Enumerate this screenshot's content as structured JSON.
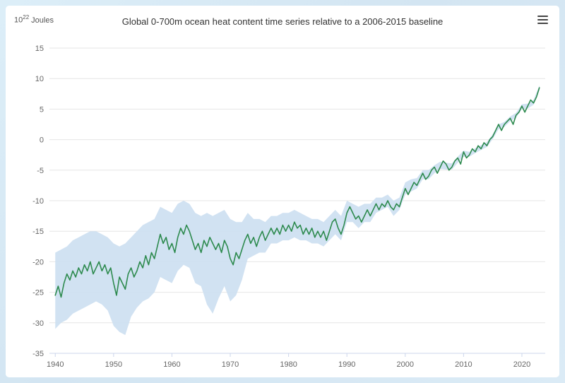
{
  "page": {
    "background_color": "#d7e7f3",
    "card_color": "#ffffff"
  },
  "header": {
    "menu_icon": "hamburger-icon"
  },
  "chart_data": {
    "type": "line",
    "title": "Global 0-700m ocean heat content time series relative to a 2006-2015 baseline",
    "unit_label": {
      "base": "10",
      "exponent": "22",
      "suffix": "Joules"
    },
    "xlabel": "",
    "ylabel": "10^22 Joules",
    "xlim": [
      1939,
      2024
    ],
    "ylim": [
      -35,
      15
    ],
    "xticks": [
      1940,
      1950,
      1960,
      1970,
      1980,
      1990,
      2000,
      2010,
      2020
    ],
    "yticks": [
      15,
      10,
      5,
      0,
      -5,
      -10,
      -15,
      -20,
      -25,
      -30,
      -35
    ],
    "grid": "horizontal",
    "legend": "none",
    "colors": {
      "line": "#2d8a4e",
      "band": "#ccdff1",
      "grid": "#e6e6e6",
      "axis": "#ccd6eb",
      "tick_label": "#666666",
      "title": "#333333"
    },
    "series": [
      {
        "name": "Ocean heat content 0-700m",
        "type": "line",
        "x_start": 1940,
        "x_step": 0.5,
        "y": [
          -25.5,
          -24.0,
          -25.8,
          -23.5,
          -22.0,
          -23.0,
          -21.5,
          -22.5,
          -21.0,
          -22.0,
          -20.5,
          -21.5,
          -20.0,
          -22.0,
          -21.0,
          -20.0,
          -21.5,
          -20.5,
          -22.0,
          -21.0,
          -23.5,
          -25.5,
          -22.5,
          -23.5,
          -24.5,
          -22.0,
          -21.0,
          -22.5,
          -21.5,
          -20.0,
          -21.0,
          -19.0,
          -20.5,
          -18.5,
          -19.5,
          -17.5,
          -15.5,
          -17.0,
          -16.0,
          -18.0,
          -17.0,
          -18.5,
          -16.0,
          -14.5,
          -15.5,
          -14.0,
          -15.0,
          -16.5,
          -18.0,
          -17.0,
          -18.5,
          -16.5,
          -17.5,
          -16.0,
          -17.0,
          -18.0,
          -17.0,
          -18.5,
          -16.5,
          -17.5,
          -19.5,
          -20.5,
          -18.5,
          -19.5,
          -18.0,
          -16.5,
          -15.5,
          -17.0,
          -16.0,
          -17.5,
          -16.0,
          -15.0,
          -16.5,
          -15.5,
          -14.5,
          -15.5,
          -14.5,
          -15.5,
          -14.0,
          -15.0,
          -14.0,
          -15.0,
          -13.5,
          -14.5,
          -14.0,
          -15.5,
          -14.5,
          -15.5,
          -14.5,
          -16.0,
          -15.0,
          -16.0,
          -15.0,
          -16.5,
          -15.0,
          -13.5,
          -13.0,
          -14.5,
          -15.5,
          -14.0,
          -12.0,
          -11.0,
          -12.0,
          -13.0,
          -12.5,
          -13.5,
          -12.5,
          -11.5,
          -12.5,
          -11.5,
          -10.5,
          -11.5,
          -10.5,
          -11.0,
          -10.0,
          -11.0,
          -11.5,
          -10.5,
          -11.0,
          -9.5,
          -8.0,
          -9.0,
          -8.0,
          -7.0,
          -7.5,
          -6.5,
          -5.5,
          -6.5,
          -6.0,
          -5.0,
          -4.5,
          -5.5,
          -4.5,
          -3.5,
          -4.0,
          -5.0,
          -4.5,
          -3.5,
          -3.0,
          -4.0,
          -2.0,
          -3.0,
          -2.5,
          -1.5,
          -2.0,
          -1.0,
          -1.5,
          -0.5,
          -1.0,
          0.0,
          0.5,
          1.5,
          2.5,
          1.5,
          2.5,
          3.0,
          3.5,
          2.5,
          4.0,
          4.5,
          5.5,
          4.5,
          5.5,
          6.5,
          6.0,
          7.0,
          8.5
        ]
      },
      {
        "name": "Uncertainty range",
        "type": "arearange",
        "x_start": 1940,
        "x_step": 1,
        "low": [
          -31,
          -30,
          -29.5,
          -28.5,
          -28,
          -27.5,
          -27,
          -26.5,
          -27,
          -28,
          -30.5,
          -31.5,
          -32,
          -29,
          -27.5,
          -26.5,
          -26,
          -25,
          -22.5,
          -23,
          -23.5,
          -21.5,
          -20.5,
          -21,
          -23.5,
          -24,
          -27,
          -28.5,
          -26,
          -24,
          -26.5,
          -25.5,
          -23,
          -19.5,
          -19,
          -18.5,
          -18.5,
          -17,
          -17,
          -16.5,
          -16.5,
          -16,
          -16.5,
          -16.5,
          -17,
          -17,
          -17.5,
          -16.5,
          -15.5,
          -16.5,
          -13.5,
          -13.5,
          -14.5,
          -13.5,
          -13.5,
          -12,
          -11.5,
          -11,
          -12.5,
          -11.5,
          -9,
          -8.5,
          -8,
          -6.5,
          -6.5,
          -5.5,
          -4.8,
          -4.9,
          -4.9,
          -3.8,
          -2.8,
          -2.8,
          -2.2,
          -1.7,
          -1.2,
          0.1,
          1.7,
          2.1,
          3.0,
          3.6,
          5.0,
          5.1,
          5.7,
          8.1
        ],
        "high": [
          -18.5,
          -18,
          -17.5,
          -16.5,
          -16,
          -15.5,
          -15,
          -15,
          -15.5,
          -16,
          -17,
          -17.5,
          -17,
          -16,
          -15,
          -14,
          -13.5,
          -13,
          -11,
          -11.5,
          -12,
          -10.5,
          -10,
          -10.5,
          -12,
          -12.5,
          -12,
          -12.5,
          -12,
          -11.5,
          -13,
          -13.5,
          -13.5,
          -12,
          -13,
          -13,
          -13.5,
          -12.5,
          -12.5,
          -12,
          -12,
          -11.5,
          -12,
          -12.5,
          -13,
          -13,
          -13.5,
          -12.5,
          -11.5,
          -12.5,
          -10,
          -10.5,
          -11,
          -10.5,
          -10.5,
          -9.5,
          -9.5,
          -9,
          -10,
          -9.5,
          -7,
          -6.5,
          -6.3,
          -5,
          -5,
          -4.2,
          -3.6,
          -3.8,
          -3.9,
          -2.8,
          -1.8,
          -2,
          -1.4,
          -0.9,
          -0.4,
          0.9,
          2.5,
          2.9,
          3.8,
          4.4,
          5.8,
          5.9,
          6.5,
          8.9
        ]
      }
    ]
  }
}
